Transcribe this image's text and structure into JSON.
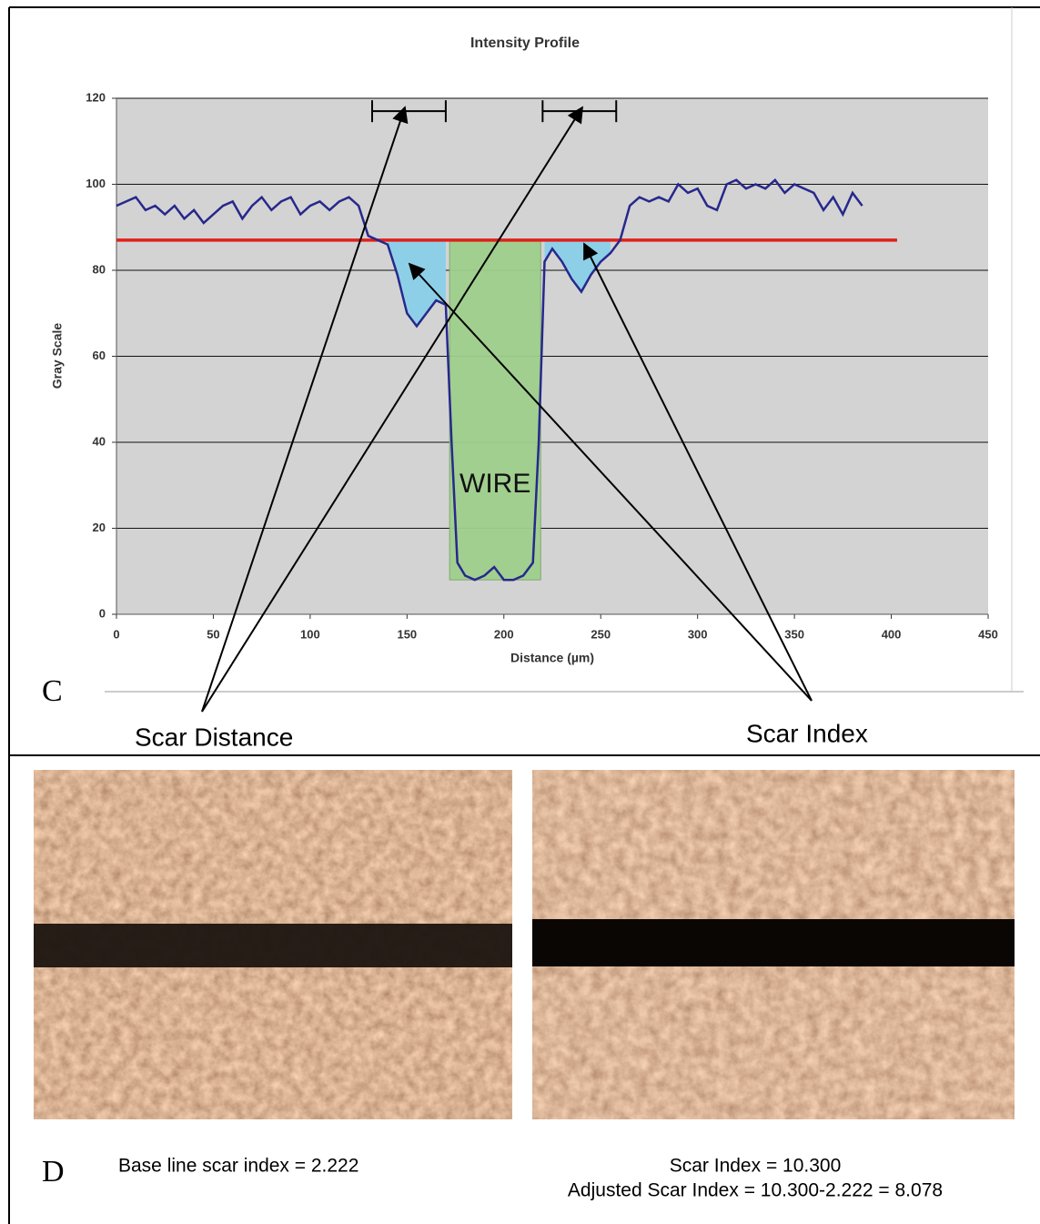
{
  "chart_data": {
    "type": "line",
    "title": "Intensity Profile",
    "xlabel": "Distance (µm)",
    "ylabel": "Gray Scale",
    "x": [
      0,
      5,
      10,
      15,
      20,
      25,
      30,
      35,
      40,
      45,
      50,
      55,
      60,
      65,
      70,
      75,
      80,
      85,
      90,
      95,
      100,
      105,
      110,
      115,
      120,
      125,
      130,
      135,
      140,
      145,
      150,
      155,
      160,
      165,
      170,
      173,
      176,
      180,
      185,
      190,
      195,
      200,
      205,
      210,
      215,
      218,
      221,
      225,
      230,
      235,
      240,
      245,
      250,
      255,
      260,
      265,
      270,
      275,
      280,
      285,
      290,
      295,
      300,
      305,
      310,
      315,
      320,
      325,
      330,
      335,
      340,
      345,
      350,
      355,
      360,
      365,
      370,
      375,
      380,
      385
    ],
    "values": [
      95,
      96,
      97,
      94,
      95,
      93,
      95,
      92,
      94,
      91,
      93,
      95,
      96,
      92,
      95,
      97,
      94,
      96,
      97,
      93,
      95,
      96,
      94,
      96,
      97,
      95,
      88,
      87,
      86,
      79,
      70,
      67,
      70,
      73,
      72,
      40,
      12,
      9,
      8,
      9,
      11,
      8,
      8,
      9,
      12,
      40,
      82,
      85,
      82,
      78,
      75,
      79,
      82,
      84,
      87,
      95,
      97,
      96,
      97,
      96,
      100,
      98,
      99,
      95,
      94,
      100,
      101,
      99,
      100,
      99,
      101,
      98,
      100,
      99,
      98,
      94,
      97,
      93,
      98,
      95
    ],
    "color": "#27288c",
    "fill_color": "#8ecfe8",
    "hline": {
      "y": 87,
      "x_end": 403,
      "color": "#e0201b"
    },
    "wire_box": {
      "x": [
        172,
        219
      ],
      "y": [
        8,
        87
      ],
      "color": "#9fcf8c",
      "label": "WIRE"
    },
    "brackets": [
      [
        132,
        170
      ],
      [
        220,
        258
      ]
    ],
    "bracket_y": 117,
    "xlim": [
      0,
      450
    ],
    "ylim": [
      0,
      120
    ],
    "xticks": [
      0,
      50,
      100,
      150,
      200,
      250,
      300,
      350,
      400,
      450
    ],
    "yticks": [
      0,
      20,
      40,
      60,
      80,
      100,
      120
    ],
    "grid": true,
    "annotations": [
      "Scar Distance",
      "Scar Index"
    ]
  },
  "panel_c": "C",
  "panel_d": "D",
  "captions": [
    "Base line scar index = 2.222",
    "Scar Index = 10.300",
    "Adjusted Scar Index = 10.300-2.222 = 8.078"
  ]
}
